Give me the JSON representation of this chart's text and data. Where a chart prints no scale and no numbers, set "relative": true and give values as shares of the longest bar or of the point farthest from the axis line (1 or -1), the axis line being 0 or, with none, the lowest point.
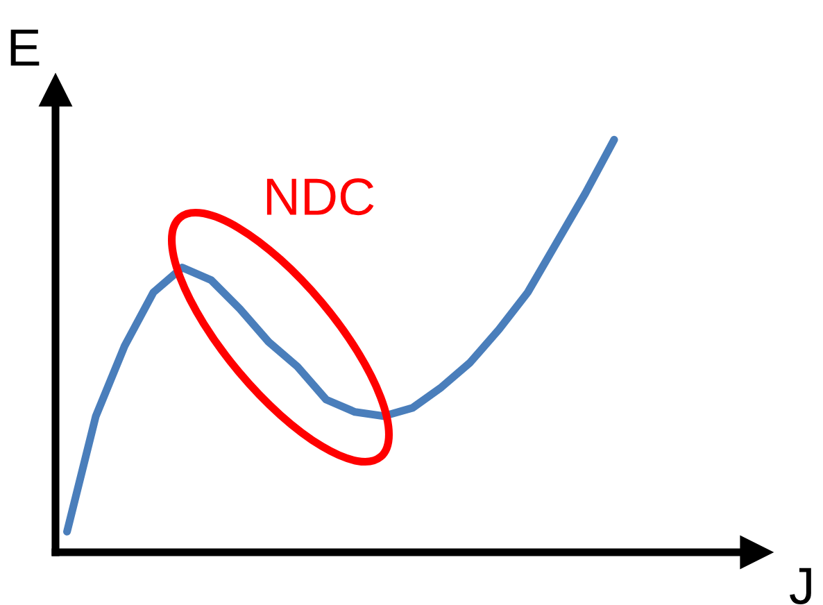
{
  "chart_data": {
    "type": "line",
    "relative": true,
    "xlabel": "J",
    "ylabel": "E",
    "categories": [
      null,
      null,
      null,
      null,
      null,
      null,
      null,
      null,
      null,
      null,
      null,
      null,
      null,
      null,
      null,
      null,
      null,
      null,
      null,
      null
    ],
    "series": [
      {
        "color": "#4a7ebb",
        "values": [
          0.05,
          0.33,
          0.5,
          0.63,
          0.69,
          0.66,
          0.59,
          0.51,
          0.45,
          0.37,
          0.34,
          0.33,
          0.35,
          0.4,
          0.46,
          0.54,
          0.63,
          0.75,
          0.87,
          1.0
        ]
      }
    ],
    "annotations": [
      "NDC"
    ]
  }
}
